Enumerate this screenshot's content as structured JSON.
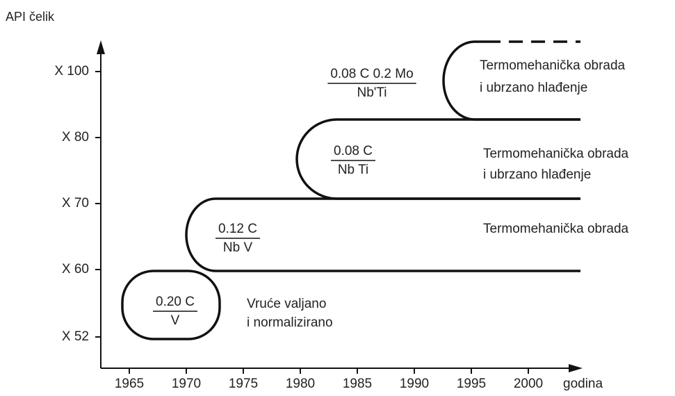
{
  "y_axis": {
    "label": "API čelik",
    "ticks": [
      "X 100",
      "X 80",
      "X 70",
      "X 60",
      "X 52"
    ]
  },
  "x_axis": {
    "label": "godina",
    "ticks": [
      "1965",
      "1970",
      "1975",
      "1980",
      "1985",
      "1990",
      "1995",
      "2000"
    ]
  },
  "stages": [
    {
      "numerator": "0.20 C",
      "denominator": "V",
      "process": [
        "Vruće valjano",
        "i normalizirano"
      ]
    },
    {
      "numerator": "0.12 C",
      "denominator": "Nb V",
      "process": [
        "Termomehanička obrada"
      ]
    },
    {
      "numerator": "0.08 C",
      "denominator": "Nb Ti",
      "process": [
        "Termomehanička obrada",
        "i ubrzano hlađenje"
      ]
    },
    {
      "numerator": "0.08 C 0.2 Mo",
      "denominator": "Nb'Ti",
      "process": [
        "Termomehanička obrada",
        "i ubrzano hlađenje"
      ]
    }
  ]
}
